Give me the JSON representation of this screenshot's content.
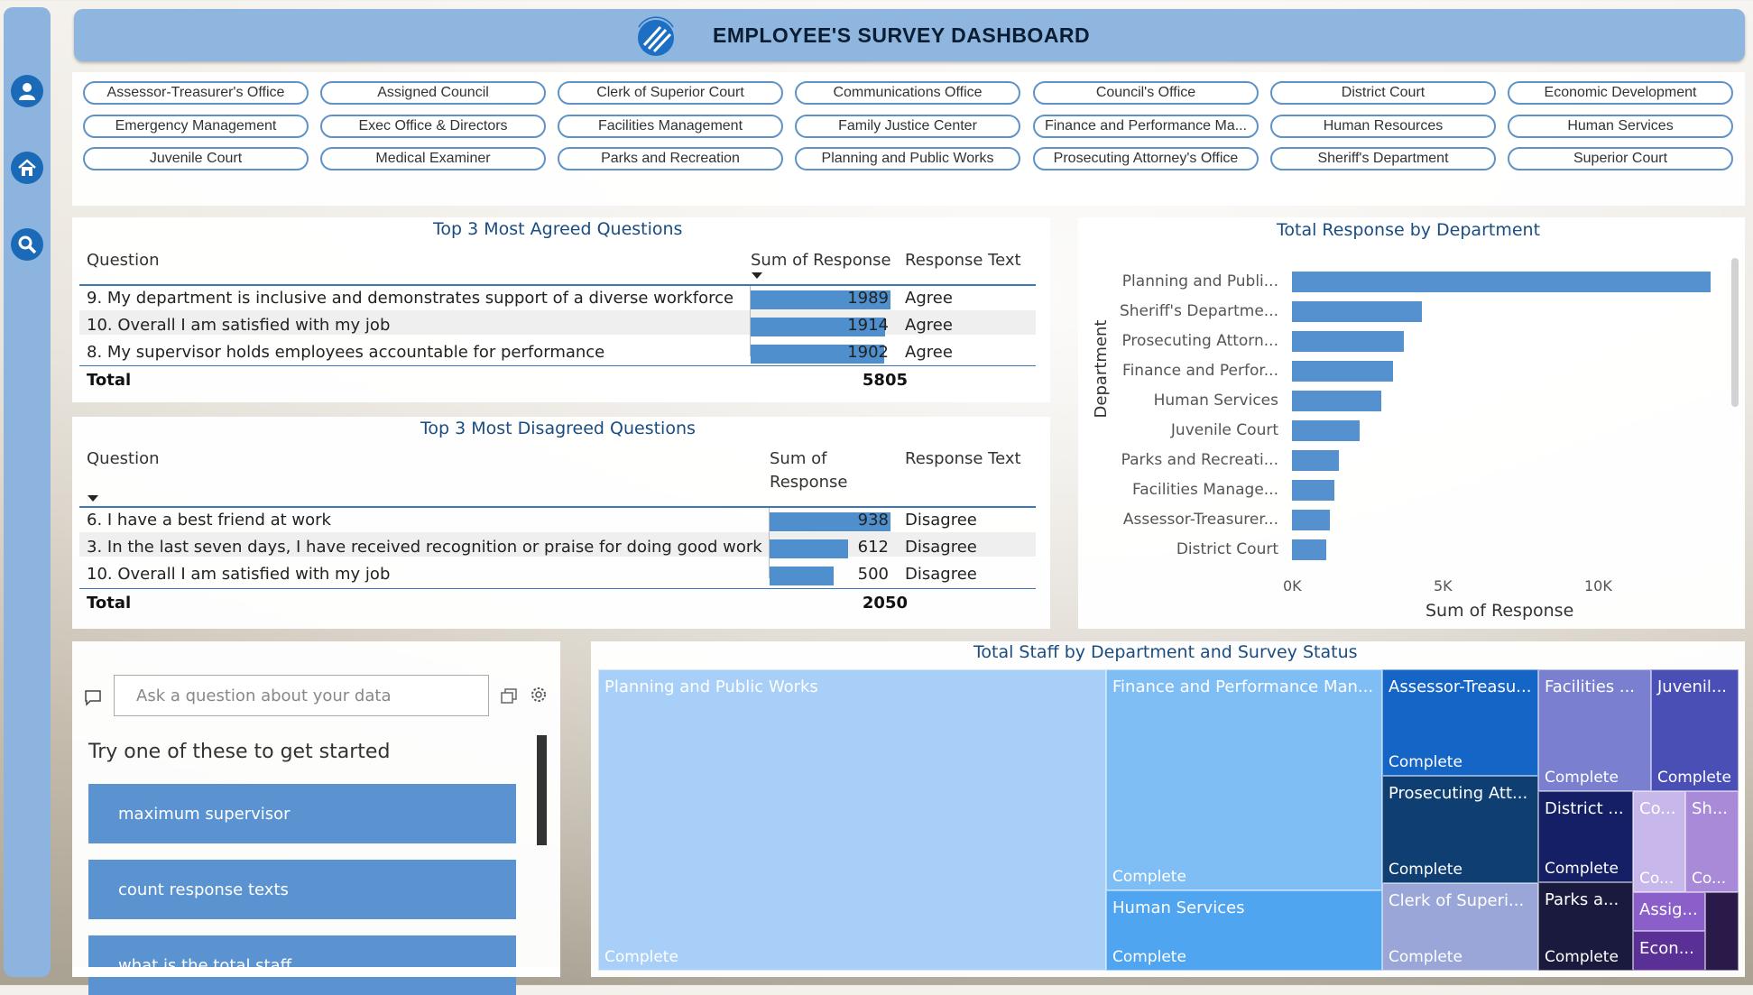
{
  "header": {
    "title": "EMPLOYEE'S SURVEY DASHBOARD"
  },
  "nav": {
    "icons": [
      "user-icon",
      "home-icon",
      "search-icon"
    ]
  },
  "departments": [
    "Assessor-Treasurer's Office",
    "Assigned Council",
    "Clerk of Superior Court",
    "Communications Office",
    "Council's Office",
    "District Court",
    "Economic Development",
    "Emergency Management",
    "Exec Office & Directors",
    "Facilities Management",
    "Family Justice Center",
    "Finance and Performance Ma...",
    "Human Resources",
    "Human Services",
    "Juvenile Court",
    "Medical Examiner",
    "Parks and Recreation",
    "Planning and Public Works",
    "Prosecuting Attorney's Office",
    "Sheriff's Department",
    "Superior Court"
  ],
  "agreed": {
    "title": "Top 3 Most Agreed Questions",
    "col_question": "Question",
    "col_sum": "Sum of Response",
    "col_text": "Response Text",
    "rows": [
      {
        "q": "9. My department is inclusive and demonstrates support of a diverse workforce",
        "v": 1989,
        "label": "1989",
        "t": "Agree"
      },
      {
        "q": "10. Overall I am satisfied with my job",
        "v": 1914,
        "label": "1914",
        "t": "Agree"
      },
      {
        "q": "8. My supervisor holds employees accountable for performance",
        "v": 1902,
        "label": "1902",
        "t": "Agree"
      }
    ],
    "total_label": "Total",
    "total": "5805"
  },
  "disagreed": {
    "title": "Top 3 Most Disagreed Questions",
    "col_question": "Question",
    "col_sum_1": "Sum of",
    "col_sum_2": "Response",
    "col_text": "Response Text",
    "rows": [
      {
        "q": "6. I have a best friend at work",
        "v": 938,
        "label": "938",
        "t": "Disagree"
      },
      {
        "q": "3. In the last seven days, I have received recognition or praise for doing good work",
        "v": 612,
        "label": "612",
        "t": "Disagree"
      },
      {
        "q": "10. Overall I am satisfied with my job",
        "v": 500,
        "label": "500",
        "t": "Disagree"
      }
    ],
    "total_label": "Total",
    "total": "2050"
  },
  "chart_data": {
    "type": "bar",
    "title": "Total Response by Department",
    "xlabel": "Sum of Response",
    "ylabel": "Department",
    "categories": [
      "Planning and Publi...",
      "Sheriff's Departme...",
      "Prosecuting Attorn...",
      "Finance and Perfor...",
      "Human Services",
      "Juvenile Court",
      "Parks and Recreati...",
      "Facilities Manage...",
      "Assessor-Treasurer...",
      "District Court"
    ],
    "values": [
      13900,
      4300,
      3700,
      3350,
      2950,
      2250,
      1550,
      1400,
      1250,
      1150
    ],
    "xlim": [
      0,
      14000
    ],
    "xticks": [
      "0K",
      "5K",
      "10K"
    ],
    "color": "#5590cf"
  },
  "qa": {
    "placeholder": "Ask a question about your data",
    "prompt": "Try one of these to get started",
    "suggestions": [
      "maximum supervisor",
      "count response texts",
      "what is the total staff"
    ]
  },
  "treemap": {
    "title": "Total Staff by Department and Survey Status",
    "status": "Complete",
    "tiles": [
      {
        "name": "Planning and Public Works",
        "status": "Complete",
        "color": "#a8cff7",
        "text": "#ffffff"
      },
      {
        "name": "Finance and Performance Man...",
        "status": "Complete",
        "color": "#7fbdf5",
        "text": "#ffffff"
      },
      {
        "name": "Human Services",
        "status": "Complete",
        "color": "#4fa5f0",
        "text": "#ffffff"
      },
      {
        "name": "Assessor-Treasu...",
        "status": "Complete",
        "color": "#1565c6",
        "text": "#ffffff"
      },
      {
        "name": "Prosecuting Att...",
        "status": "Complete",
        "color": "#0f3f72",
        "text": "#ffffff"
      },
      {
        "name": "Clerk of Superi...",
        "status": "Complete",
        "color": "#9aa6d8",
        "text": "#ffffff"
      },
      {
        "name": "Facilities ...",
        "status": "Complete",
        "color": "#7a80cf",
        "text": "#ffffff"
      },
      {
        "name": "Juvenil...",
        "status": "Complete",
        "color": "#4a4fb6",
        "text": "#ffffff"
      },
      {
        "name": "District ...",
        "status": "Complete",
        "color": "#141f66",
        "text": "#ffffff"
      },
      {
        "name": "Co...",
        "status": "Co...",
        "color": "#c8b7ea",
        "text": "#ffffff"
      },
      {
        "name": "Sh...",
        "status": "Co...",
        "color": "#a98ad8",
        "text": "#ffffff"
      },
      {
        "name": "Parks a...",
        "status": "Complete",
        "color": "#1a1a3e",
        "text": "#ffffff"
      },
      {
        "name": "Assig...",
        "status": "",
        "color": "#8a5fc9",
        "text": "#ffffff"
      },
      {
        "name": "Econ...",
        "status": "",
        "color": "#5a2f96",
        "text": "#ffffff"
      },
      {
        "name": "",
        "status": "",
        "color": "#2a1a4a",
        "text": "#ffffff"
      }
    ]
  }
}
